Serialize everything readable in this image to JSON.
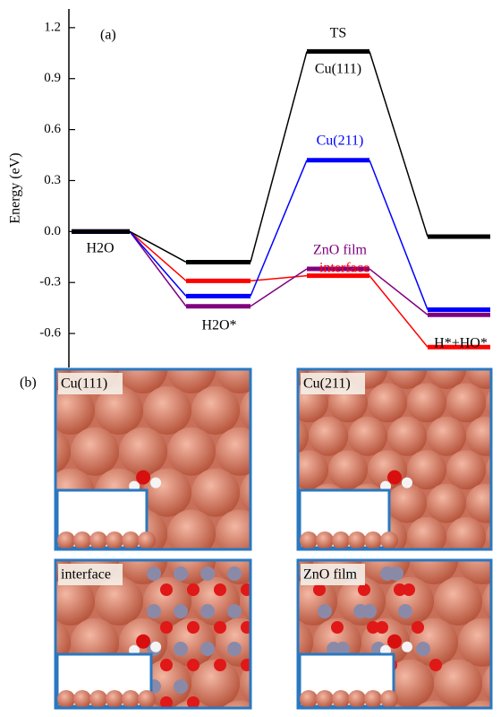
{
  "chart_data": {
    "type": "energy-levels",
    "panel_label": "(a)",
    "ylabel": "Energy (eV)",
    "categories": [
      "H2O",
      "H2O*",
      "TS",
      "H*+HO*"
    ],
    "series": [
      {
        "name": "Cu(111)",
        "color": "#000000",
        "values": [
          0,
          -0.18,
          1.06,
          -0.03
        ]
      },
      {
        "name": "Cu(211)",
        "color": "#0000ff",
        "values": [
          0,
          -0.38,
          0.42,
          -0.46
        ]
      },
      {
        "name": "ZnO film",
        "color": "#800080",
        "values": [
          0,
          -0.44,
          -0.22,
          -0.49
        ]
      },
      {
        "name": "interface",
        "color": "#ff0000",
        "values": [
          0,
          -0.29,
          -0.26,
          -0.68
        ]
      }
    ],
    "ylim": [
      -0.8,
      1.31
    ],
    "yticks": [
      -0.6,
      -0.3,
      {
        "value": 0,
        "label": "0.0"
      },
      0.3,
      0.6,
      0.9,
      1.2
    ]
  },
  "panels": {
    "label": "(b)",
    "titles": [
      "Cu(111)",
      "Cu(211)",
      "interface",
      "ZnO film"
    ]
  }
}
